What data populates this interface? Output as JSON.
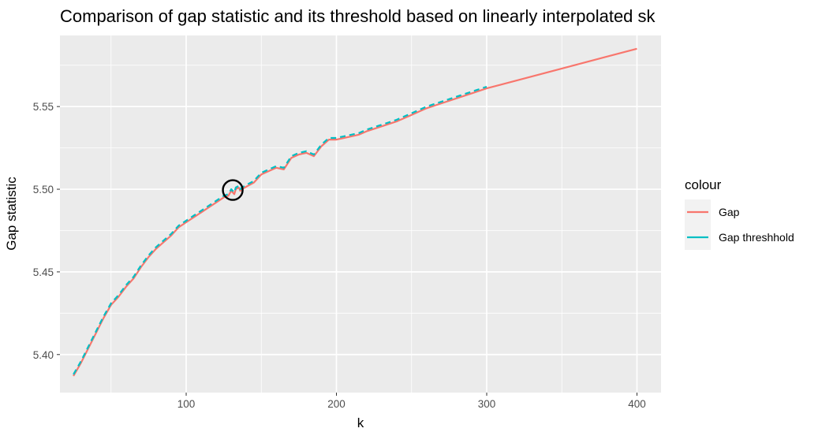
{
  "chart_data": {
    "type": "line",
    "title": "Comparison of gap statistic and its threshold based on linearly interpolated sk",
    "xlabel": "k",
    "ylabel": "Gap statistic",
    "xlim": [
      16,
      416
    ],
    "ylim": [
      5.377,
      5.593
    ],
    "x_ticks": [
      100,
      200,
      300,
      400
    ],
    "x_tick_labels": [
      "100",
      "200",
      "300",
      "400"
    ],
    "x_minor_ticks": [
      50,
      150,
      250,
      350
    ],
    "y_ticks": [
      5.4,
      5.45,
      5.5,
      5.55
    ],
    "y_tick_labels": [
      "5.40",
      "5.45",
      "5.50",
      "5.55"
    ],
    "y_minor_ticks": [
      5.425,
      5.475,
      5.525,
      5.575
    ],
    "grid": true,
    "legend": {
      "title": "colour",
      "position": "right",
      "entries": [
        {
          "label": "Gap",
          "color": "#F8766D"
        },
        {
          "label": "Gap threshhold",
          "color": "#00BFC4"
        }
      ]
    },
    "series": [
      {
        "name": "Gap",
        "color": "#F8766D",
        "x": [
          25,
          30,
          35,
          40,
          45,
          50,
          55,
          60,
          65,
          70,
          75,
          80,
          85,
          90,
          95,
          100,
          105,
          110,
          115,
          120,
          125,
          128,
          130,
          132,
          133,
          135,
          136,
          137,
          139,
          141,
          145,
          150,
          155,
          160,
          165,
          170,
          175,
          180,
          185,
          190,
          195,
          200,
          205,
          210,
          215,
          220,
          230,
          240,
          250,
          260,
          270,
          280,
          290,
          300,
          350,
          400
        ],
        "y": [
          5.387,
          5.395,
          5.404,
          5.413,
          5.422,
          5.43,
          5.435,
          5.441,
          5.446,
          5.453,
          5.459,
          5.464,
          5.468,
          5.472,
          5.477,
          5.48,
          5.483,
          5.486,
          5.489,
          5.492,
          5.495,
          5.496,
          5.499,
          5.497,
          5.5,
          5.501,
          5.499,
          5.5,
          5.501,
          5.502,
          5.504,
          5.509,
          5.511,
          5.513,
          5.512,
          5.519,
          5.521,
          5.522,
          5.52,
          5.526,
          5.53,
          5.53,
          5.531,
          5.532,
          5.533,
          5.535,
          5.538,
          5.541,
          5.545,
          5.549,
          5.552,
          5.555,
          5.558,
          5.561,
          5.573,
          5.585
        ]
      },
      {
        "name": "Gap threshhold",
        "color": "#00BFC4",
        "x": [
          25,
          30,
          35,
          40,
          45,
          50,
          55,
          60,
          65,
          70,
          75,
          80,
          85,
          90,
          95,
          100,
          105,
          110,
          115,
          120,
          125,
          128,
          130,
          132,
          133,
          135,
          136,
          137,
          139,
          141,
          145,
          150,
          155,
          160,
          165,
          170,
          175,
          180,
          185,
          190,
          195,
          200,
          205,
          210,
          215,
          220,
          230,
          240,
          250,
          260,
          270,
          280,
          290,
          300
        ],
        "y": [
          5.388,
          5.396,
          5.405,
          5.414,
          5.423,
          5.431,
          5.436,
          5.442,
          5.447,
          5.454,
          5.46,
          5.465,
          5.469,
          5.473,
          5.478,
          5.481,
          5.484,
          5.487,
          5.49,
          5.493,
          5.496,
          5.497,
          5.5,
          5.498,
          5.501,
          5.502,
          5.5,
          5.501,
          5.502,
          5.503,
          5.505,
          5.51,
          5.512,
          5.514,
          5.513,
          5.52,
          5.522,
          5.523,
          5.521,
          5.527,
          5.531,
          5.531,
          5.532,
          5.533,
          5.534,
          5.536,
          5.539,
          5.542,
          5.546,
          5.55,
          5.553,
          5.556,
          5.559,
          5.562
        ]
      }
    ],
    "annotations": [
      {
        "type": "circle",
        "x": 131,
        "y": 5.4995,
        "color": "#000000"
      }
    ]
  }
}
